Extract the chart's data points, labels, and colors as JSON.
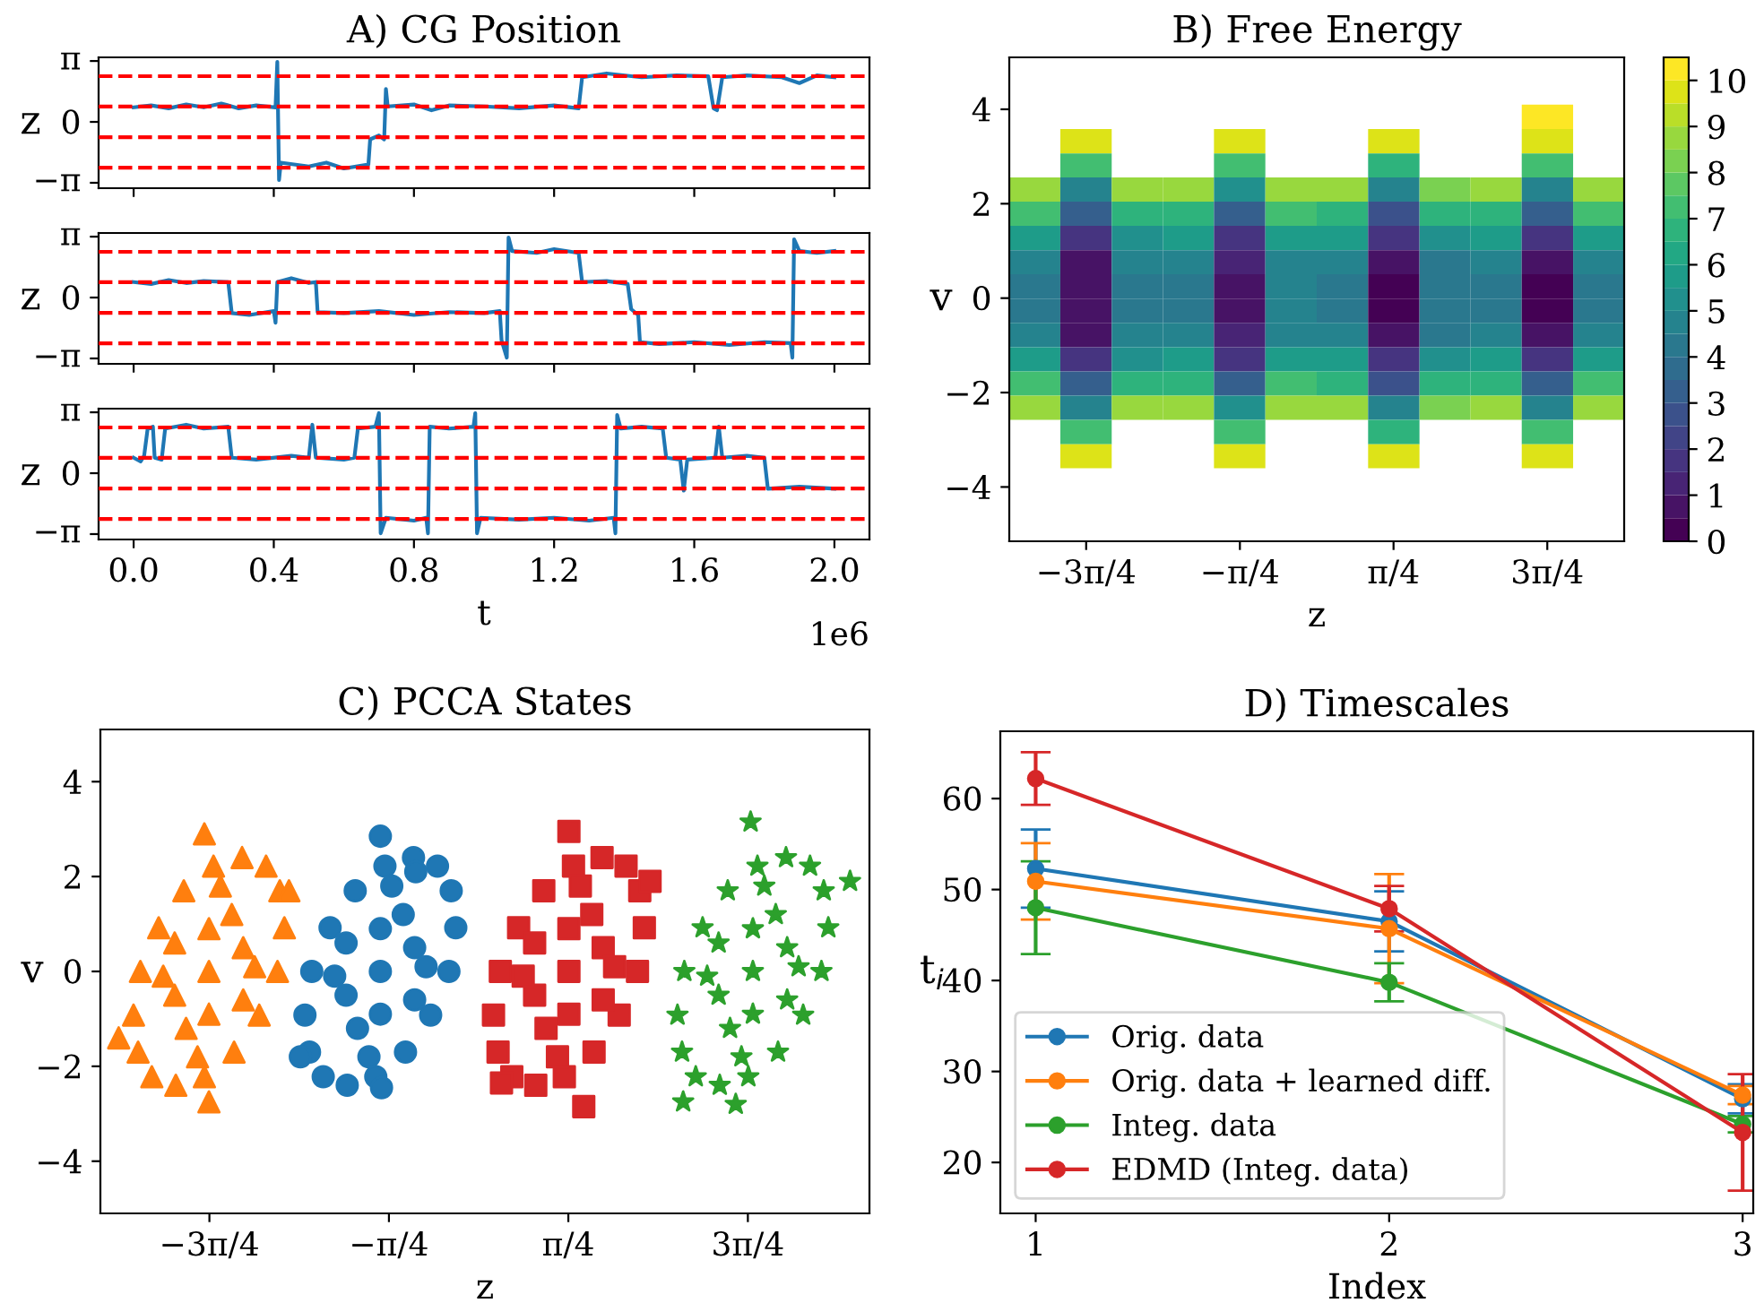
{
  "chart_data": [
    {
      "type": "line",
      "title": "A) CG Position",
      "ylabel": "z",
      "tick_labels": "y",
      "xlim": [
        -0.1,
        2.1
      ],
      "xticks": [
        0,
        0.4,
        0.8,
        1.2,
        1.6,
        2
      ],
      "ylim": [
        -3.42,
        3.33
      ],
      "yticks": [
        {
          "value": -3.1416,
          "label": "−π"
        },
        0,
        {
          "value": 3.1416,
          "label": "π"
        }
      ],
      "ref_lines": [
        {
          "axis": "y",
          "value": 2.36,
          "color": "#ff0000",
          "line_style": "dashed"
        },
        {
          "axis": "y",
          "value": 0.79,
          "color": "#ff0000",
          "line_style": "dashed"
        },
        {
          "axis": "y",
          "value": -0.79,
          "color": "#ff0000",
          "line_style": "dashed"
        },
        {
          "axis": "y",
          "value": -2.36,
          "color": "#ff0000",
          "line_style": "dashed"
        }
      ],
      "series": [
        {
          "color": "#1f77b4",
          "x": [
            0,
            0.05,
            0.1,
            0.15,
            0.2,
            0.25,
            0.3,
            0.35,
            0.405,
            0.41,
            0.415,
            0.42,
            0.5,
            0.55,
            0.6,
            0.67,
            0.675,
            0.7,
            0.715,
            0.72,
            0.725,
            0.8,
            0.85,
            0.9,
            1.0,
            1.1,
            1.2,
            1.27,
            1.28,
            1.35,
            1.45,
            1.55,
            1.64,
            1.655,
            1.665,
            1.68,
            1.75,
            1.85,
            1.9,
            1.95,
            2.0
          ],
          "values": [
            0.75,
            0.85,
            0.7,
            0.9,
            0.75,
            0.95,
            0.7,
            0.85,
            0.75,
            3.1,
            -3.0,
            -2.1,
            -2.3,
            -2.1,
            -2.4,
            -2.2,
            -0.9,
            -0.7,
            -0.9,
            1.7,
            0.8,
            0.9,
            0.6,
            0.85,
            0.8,
            0.7,
            0.85,
            0.7,
            2.3,
            2.5,
            2.3,
            2.4,
            2.35,
            0.7,
            0.6,
            2.3,
            2.4,
            2.3,
            2.0,
            2.4,
            2.3
          ]
        }
      ]
    },
    {
      "type": "line",
      "ylabel": "z",
      "tick_labels": "y",
      "xlim": [
        -0.1,
        2.1
      ],
      "xticks": [
        0,
        0.4,
        0.8,
        1.2,
        1.6,
        2
      ],
      "ylim": [
        -3.42,
        3.33
      ],
      "yticks": [
        {
          "value": -3.1416,
          "label": "−π"
        },
        0,
        {
          "value": 3.1416,
          "label": "π"
        }
      ],
      "ref_lines": [
        {
          "axis": "y",
          "value": 2.36,
          "color": "#ff0000",
          "line_style": "dashed"
        },
        {
          "axis": "y",
          "value": 0.79,
          "color": "#ff0000",
          "line_style": "dashed"
        },
        {
          "axis": "y",
          "value": -0.79,
          "color": "#ff0000",
          "line_style": "dashed"
        },
        {
          "axis": "y",
          "value": -2.36,
          "color": "#ff0000",
          "line_style": "dashed"
        }
      ],
      "series": [
        {
          "color": "#1f77b4",
          "x": [
            0,
            0.05,
            0.1,
            0.15,
            0.2,
            0.27,
            0.28,
            0.33,
            0.4,
            0.405,
            0.41,
            0.45,
            0.5,
            0.52,
            0.525,
            0.6,
            0.7,
            0.8,
            0.9,
            1.0,
            1.045,
            1.05,
            1.065,
            1.07,
            1.08,
            1.15,
            1.2,
            1.27,
            1.28,
            1.35,
            1.41,
            1.42,
            1.44,
            1.445,
            1.5,
            1.6,
            1.7,
            1.8,
            1.875,
            1.88,
            1.885,
            1.9,
            1.95,
            2.0
          ],
          "values": [
            0.8,
            0.7,
            0.9,
            0.75,
            0.85,
            0.8,
            -0.8,
            -0.9,
            -0.7,
            -1.3,
            0.8,
            1.0,
            0.75,
            0.8,
            -0.75,
            -0.8,
            -0.7,
            -0.9,
            -0.75,
            -0.8,
            -0.7,
            -2.2,
            -3.1,
            3.1,
            2.4,
            2.3,
            2.5,
            2.3,
            0.8,
            0.85,
            0.7,
            -0.6,
            -0.9,
            -2.3,
            -2.4,
            -2.3,
            -2.45,
            -2.3,
            -2.35,
            -3.1,
            3.0,
            2.4,
            2.3,
            2.4
          ]
        }
      ]
    },
    {
      "type": "line",
      "ylabel": "z",
      "xlabel": "t",
      "annotations": [
        "1e6"
      ],
      "xlim": [
        -0.1,
        2.1
      ],
      "xticks": [
        {
          "value": 0,
          "label": "0.0"
        },
        0.4,
        0.8,
        1.2,
        1.6,
        {
          "value": 2,
          "label": "2.0"
        }
      ],
      "ylim": [
        -3.42,
        3.33
      ],
      "yticks": [
        {
          "value": -3.1416,
          "label": "−π"
        },
        0,
        {
          "value": 3.1416,
          "label": "π"
        }
      ],
      "ref_lines": [
        {
          "axis": "y",
          "value": 2.36,
          "color": "#ff0000",
          "line_style": "dashed"
        },
        {
          "axis": "y",
          "value": 0.79,
          "color": "#ff0000",
          "line_style": "dashed"
        },
        {
          "axis": "y",
          "value": -0.79,
          "color": "#ff0000",
          "line_style": "dashed"
        },
        {
          "axis": "y",
          "value": -2.36,
          "color": "#ff0000",
          "line_style": "dashed"
        }
      ],
      "series": [
        {
          "color": "#1f77b4",
          "x": [
            0,
            0.02,
            0.03,
            0.04,
            0.055,
            0.06,
            0.08,
            0.09,
            0.15,
            0.2,
            0.27,
            0.28,
            0.35,
            0.45,
            0.5,
            0.51,
            0.52,
            0.6,
            0.63,
            0.64,
            0.69,
            0.7,
            0.705,
            0.72,
            0.8,
            0.835,
            0.84,
            0.845,
            0.9,
            0.97,
            0.975,
            0.98,
            0.99,
            1.1,
            1.2,
            1.3,
            1.37,
            1.375,
            1.38,
            1.39,
            1.45,
            1.51,
            1.52,
            1.56,
            1.57,
            1.58,
            1.66,
            1.67,
            1.68,
            1.75,
            1.8,
            1.81,
            1.9,
            2.0
          ],
          "values": [
            0.8,
            0.6,
            0.9,
            2.3,
            2.4,
            0.8,
            0.7,
            2.3,
            2.5,
            2.3,
            2.4,
            0.8,
            0.7,
            0.9,
            0.8,
            2.5,
            0.8,
            0.7,
            0.8,
            2.3,
            2.4,
            3.1,
            -3.1,
            -2.3,
            -2.45,
            -2.3,
            -3.1,
            2.4,
            2.3,
            2.4,
            3.1,
            -3.1,
            -2.3,
            -2.4,
            -2.3,
            -2.45,
            -2.3,
            -3.1,
            3.0,
            2.3,
            2.4,
            2.3,
            0.8,
            0.7,
            -0.9,
            0.7,
            0.8,
            2.4,
            0.8,
            0.9,
            0.8,
            -0.8,
            -0.7,
            -0.8
          ]
        }
      ]
    },
    {
      "type": "heatmap",
      "title": "B) Free Energy",
      "xlabel": "z",
      "ylabel": "v",
      "x": [
        -2.88,
        -2.36,
        -1.83,
        -1.31,
        -0.79,
        -0.26,
        0.26,
        0.79,
        1.31,
        1.83,
        2.36,
        2.88
      ],
      "y": [
        3.84,
        3.32,
        2.81,
        2.3,
        1.79,
        1.27,
        0.76,
        0.25,
        -0.27,
        -0.78,
        -1.3,
        -1.81,
        -2.32,
        -2.84,
        -3.35
      ],
      "xlim": [
        -3.1416,
        3.1416
      ],
      "xticks": [
        {
          "value": -2.356,
          "label": "−3π/4"
        },
        {
          "value": -0.785,
          "label": "−π/4"
        },
        {
          "value": 0.785,
          "label": "π/4"
        },
        {
          "value": 2.356,
          "label": "3π/4"
        }
      ],
      "ylim": [
        -5.15,
        5.1
      ],
      "yticks": [
        {
          "value": -4,
          "label": "−4"
        },
        {
          "value": -2,
          "label": "−2"
        },
        0,
        2,
        4
      ],
      "clim": [
        0,
        10.5
      ],
      "cticks": [
        0,
        1,
        2,
        3,
        4,
        5,
        6,
        7,
        8,
        9,
        10
      ],
      "cells": [
        [
          null,
          null,
          null,
          null,
          null,
          null,
          null,
          null,
          null,
          null,
          10.2,
          null
        ],
        [
          null,
          9.8,
          null,
          null,
          9.9,
          null,
          null,
          9.5,
          null,
          null,
          9.7,
          null
        ],
        [
          null,
          7.1,
          null,
          null,
          7.2,
          null,
          null,
          6.8,
          null,
          null,
          7.0,
          null
        ],
        [
          8.8,
          4.9,
          8.5,
          8.7,
          5.0,
          8.9,
          8.7,
          4.6,
          8.4,
          8.6,
          4.8,
          8.8
        ],
        [
          7.0,
          3.1,
          6.7,
          6.9,
          3.2,
          7.1,
          6.9,
          2.8,
          6.6,
          6.8,
          3.0,
          7.0
        ],
        [
          5.7,
          1.8,
          5.4,
          5.6,
          1.9,
          5.8,
          5.6,
          1.5,
          5.3,
          5.5,
          1.7,
          5.7
        ],
        [
          4.8,
          0.9,
          4.5,
          4.7,
          1.0,
          4.9,
          4.7,
          0.6,
          4.4,
          4.6,
          0.8,
          4.8
        ],
        [
          4.4,
          0.5,
          4.1,
          4.3,
          0.6,
          4.5,
          4.3,
          0.2,
          4.0,
          4.2,
          0.4,
          4.4
        ],
        [
          4.4,
          0.5,
          4.1,
          4.3,
          0.6,
          4.5,
          4.3,
          0.2,
          4.0,
          4.2,
          0.4,
          4.4
        ],
        [
          4.8,
          0.9,
          4.5,
          4.7,
          1.0,
          4.9,
          4.7,
          0.6,
          4.4,
          4.6,
          0.8,
          4.8
        ],
        [
          5.7,
          1.8,
          5.4,
          5.6,
          1.9,
          5.8,
          5.6,
          1.5,
          5.3,
          5.5,
          1.7,
          5.7
        ],
        [
          7.0,
          3.1,
          6.7,
          6.9,
          3.2,
          7.1,
          6.9,
          2.8,
          6.6,
          6.8,
          3.0,
          7.0
        ],
        [
          8.8,
          4.9,
          8.5,
          8.7,
          5.0,
          8.9,
          8.7,
          4.6,
          8.4,
          8.6,
          4.8,
          8.8
        ],
        [
          null,
          7.1,
          null,
          null,
          7.2,
          null,
          null,
          6.8,
          null,
          null,
          7.0,
          null
        ],
        [
          null,
          9.8,
          null,
          null,
          9.9,
          null,
          null,
          9.5,
          null,
          null,
          9.7,
          null
        ]
      ]
    },
    {
      "type": "scatter",
      "title": "C) PCCA States",
      "xlabel": "z",
      "ylabel": "v",
      "xlim": [
        -3.31,
        3.42
      ],
      "xticks": [
        {
          "value": -2.356,
          "label": "−3π/4"
        },
        {
          "value": -0.785,
          "label": "−π/4"
        },
        {
          "value": 0.785,
          "label": "π/4"
        },
        {
          "value": 2.356,
          "label": "3π/4"
        }
      ],
      "ylim": [
        -5.1,
        5.1
      ],
      "yticks": [
        {
          "value": -4,
          "label": "−4"
        },
        {
          "value": -2,
          "label": "−2"
        },
        0,
        2,
        4
      ],
      "series": [
        {
          "color": "#ff7f0e",
          "marker": "triangle",
          "x": [
            -1.76,
            -1.7,
            -1.74,
            -1.86,
            -2.07,
            -2.32,
            -2.58,
            -2.8,
            -2.96,
            -3.02,
            -2.98,
            -2.86,
            -2.65,
            -2.4,
            -2.14,
            -1.92,
            -2.36,
            -2.06,
            -2.66,
            -2.16,
            -2.56,
            -2.06,
            -2.66,
            -2.26,
            -2.46,
            -2.36,
            -2.36,
            -1.96,
            -2.76,
            -2.4,
            -1.66,
            -3.15,
            -2.36
          ],
          "values": [
            0,
            0.92,
            1.7,
            2.22,
            2.4,
            2.22,
            1.7,
            0.92,
            0,
            -0.92,
            -1.7,
            -2.22,
            -2.4,
            -2.22,
            -1.7,
            -0.92,
            0,
            0.5,
            -0.5,
            1.2,
            -1.2,
            -0.6,
            0.6,
            1.8,
            -1.8,
            0.9,
            -0.9,
            0.1,
            -0.1,
            2.9,
            1.7,
            -1.4,
            -2.75
          ]
        },
        {
          "color": "#1f77b4",
          "marker": "circle",
          "x": [
            -0.26,
            -0.2,
            -0.24,
            -0.36,
            -0.57,
            -0.82,
            -1.08,
            -1.3,
            -1.46,
            -1.52,
            -1.48,
            -1.36,
            -1.15,
            -0.9,
            -0.64,
            -0.42,
            -0.86,
            -0.56,
            -1.16,
            -0.66,
            -1.06,
            -0.56,
            -1.16,
            -0.76,
            -0.96,
            -0.86,
            -0.86,
            -0.46,
            -1.26,
            -0.86,
            -0.55,
            -1.56,
            -0.85
          ],
          "values": [
            0,
            0.92,
            1.7,
            2.22,
            2.4,
            2.22,
            1.7,
            0.92,
            0,
            -0.92,
            -1.7,
            -2.22,
            -2.4,
            -2.22,
            -1.7,
            -0.92,
            0,
            0.5,
            -0.5,
            1.2,
            -1.2,
            -0.6,
            0.6,
            1.8,
            -1.8,
            0.9,
            -0.9,
            0.1,
            -0.1,
            2.85,
            2.1,
            -1.8,
            -2.45
          ]
        },
        {
          "color": "#d62728",
          "marker": "square",
          "x": [
            1.39,
            1.45,
            1.41,
            1.29,
            1.08,
            0.83,
            0.57,
            0.35,
            0.19,
            0.13,
            0.17,
            0.29,
            0.5,
            0.75,
            1.01,
            1.23,
            0.79,
            1.09,
            0.49,
            0.99,
            0.59,
            1.09,
            0.49,
            0.89,
            0.69,
            0.79,
            0.79,
            1.19,
            0.39,
            0.79,
            0.2,
            0.92,
            1.5
          ],
          "values": [
            0,
            0.92,
            1.7,
            2.22,
            2.4,
            2.22,
            1.7,
            0.92,
            0,
            -0.92,
            -1.7,
            -2.22,
            -2.4,
            -2.22,
            -1.7,
            -0.92,
            0,
            0.5,
            -0.5,
            1.2,
            -1.2,
            -0.6,
            0.6,
            1.8,
            -1.8,
            0.9,
            -0.9,
            0.1,
            -0.1,
            2.95,
            -2.35,
            -2.85,
            1.9
          ]
        },
        {
          "color": "#2ca02c",
          "marker": "star",
          "x": [
            3.0,
            3.06,
            3.02,
            2.9,
            2.69,
            2.44,
            2.18,
            1.96,
            1.8,
            1.74,
            1.78,
            1.9,
            2.11,
            2.36,
            2.62,
            2.84,
            2.4,
            2.7,
            2.1,
            2.6,
            2.2,
            2.7,
            2.1,
            2.5,
            2.3,
            2.4,
            2.4,
            2.8,
            2.0,
            2.38,
            3.25,
            1.79,
            2.25
          ],
          "values": [
            0,
            0.92,
            1.7,
            2.22,
            2.4,
            2.22,
            1.7,
            0.92,
            0,
            -0.92,
            -1.7,
            -2.22,
            -2.4,
            -2.22,
            -1.7,
            -0.92,
            0,
            0.5,
            -0.5,
            1.2,
            -1.2,
            -0.6,
            0.6,
            1.8,
            -1.8,
            0.9,
            -0.9,
            0.1,
            -0.1,
            3.15,
            1.9,
            -2.75,
            -2.8
          ]
        }
      ]
    },
    {
      "type": "line",
      "title": "D) Timescales",
      "xlabel": "Index",
      "ylabel": "t$_{i}$",
      "marker": "circle",
      "legend": "bottom left",
      "x": [
        1,
        2,
        3
      ],
      "xlim": [
        0.9,
        3.03
      ],
      "xticks": [
        1,
        2,
        3
      ],
      "ylim": [
        14.4,
        67.4
      ],
      "yticks": [
        20,
        30,
        40,
        50,
        60
      ],
      "series": [
        {
          "name": "Orig. data",
          "color": "#1f77b4",
          "values": [
            52.3,
            46.5,
            27.0
          ],
          "errors": [
            4.3,
            3.3,
            1.6
          ]
        },
        {
          "name": "Orig. data + learned diff.",
          "color": "#ff7f0e",
          "values": [
            50.9,
            45.7,
            27.4
          ],
          "errors": [
            4.2,
            6.0,
            1.0
          ]
        },
        {
          "name": "Integ. data",
          "color": "#2ca02c",
          "values": [
            48.0,
            39.8,
            24.2
          ],
          "errors": [
            5.1,
            2.1,
            0.9
          ]
        },
        {
          "name": "EDMD (Integ. data)",
          "color": "#d62728",
          "values": [
            62.2,
            47.9,
            23.3
          ],
          "errors": [
            2.9,
            2.5,
            6.4
          ]
        }
      ]
    }
  ]
}
